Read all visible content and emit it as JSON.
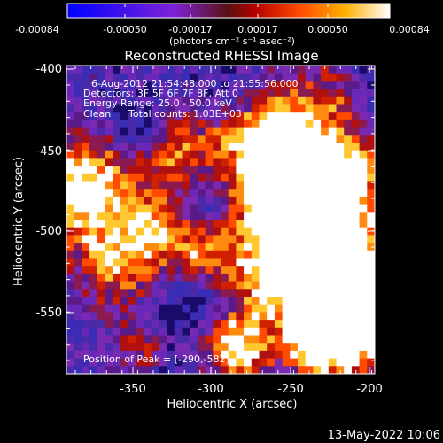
{
  "colorbar": {
    "tick_labels": [
      "-0.00084",
      "-0.00050",
      "-0.00017",
      "0.00017",
      "0.00050",
      "0.00084"
    ],
    "unit_label": "(photons cm⁻² s⁻¹ asec⁻²)",
    "min": -0.00084,
    "max": 0.00084
  },
  "plot": {
    "title": "Reconstructed RHESSI Image",
    "xlabel": "Heliocentric X (arcsec)",
    "ylabel": "Heliocentric Y (arcsec)",
    "x_tick_labels": [
      "-350",
      "-300",
      "-250",
      "-200"
    ],
    "y_tick_labels": [
      "-400",
      "-450",
      "-500",
      "-550"
    ],
    "xlim": [
      -393,
      -198
    ],
    "ylim": [
      -590,
      -397
    ]
  },
  "annotations": {
    "time_range": "6-Aug-2012 21:54:48.000 to 21:55:56.000",
    "detectors": "Detectors: 3F 5F 6F 7F 8F, Att 0",
    "energy_range": "Energy Range: 25.0 - 50.0 keV",
    "method": "Clean",
    "total_counts": "Total counts: 1.03E+03",
    "peak_position": "Position of Peak = [-290,-582]"
  },
  "footer": {
    "date_stamp": "13-May-2022 10:06"
  }
}
